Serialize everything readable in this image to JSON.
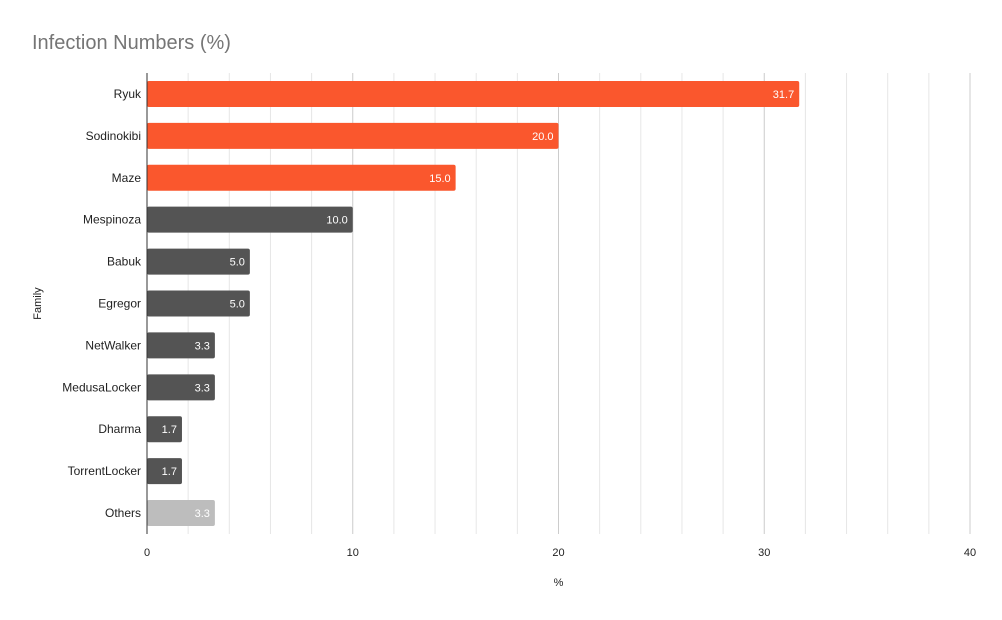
{
  "chart_data": {
    "type": "bar",
    "orientation": "horizontal",
    "title": "Infection Numbers (%)",
    "xlabel": "%",
    "ylabel": "Family",
    "xlim": [
      0,
      40
    ],
    "xticks": [
      0,
      10,
      20,
      30,
      40
    ],
    "grid": true,
    "categories": [
      "Ryuk",
      "Sodinokibi",
      "Maze",
      "Mespinoza",
      "Babuk",
      "Egregor",
      "NetWalker",
      "MedusaLocker",
      "Dharma",
      "TorrentLocker",
      "Others"
    ],
    "values": [
      31.7,
      20.0,
      15.0,
      10.0,
      5.0,
      5.0,
      3.3,
      3.3,
      1.7,
      1.7,
      3.3
    ],
    "data_labels": [
      "31.7",
      "20.0",
      "15.0",
      "10.0",
      "5.0",
      "5.0",
      "3.3",
      "3.3",
      "1.7",
      "1.7",
      "3.3"
    ],
    "bar_colors": [
      "#fa572d",
      "#fa572d",
      "#fa572d",
      "#545454",
      "#545454",
      "#545454",
      "#545454",
      "#545454",
      "#545454",
      "#545454",
      "#bdbdbd"
    ],
    "legend": "none"
  }
}
